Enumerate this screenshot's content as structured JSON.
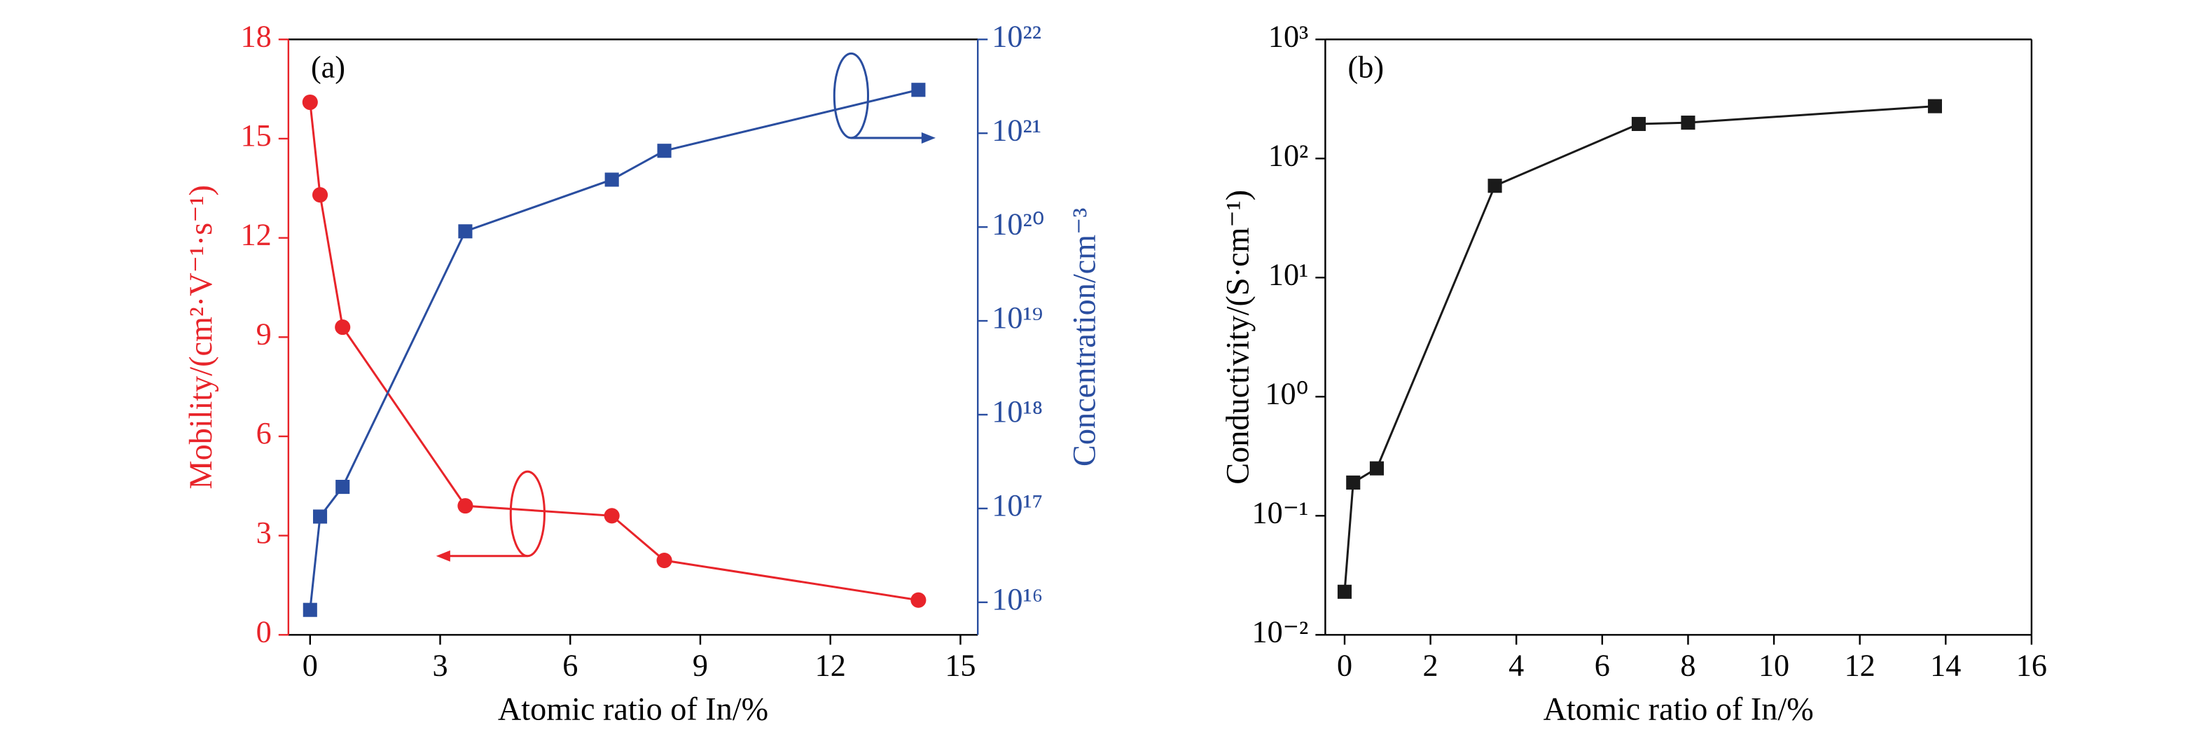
{
  "chart_data": [
    {
      "type": "line",
      "annotation": "(a)",
      "xlabel": "Atomic ratio of In/%",
      "ylabel": "Mobility/(cm²·V⁻¹·s⁻¹)",
      "y2label": "Concentration/cm⁻³",
      "yaxis_color": "#e8242a",
      "y2axis_color": "#2a4ea0",
      "y2log": true,
      "x": [
        0,
        0.23,
        0.75,
        3.58,
        6.96,
        8.17,
        14.03
      ],
      "xlim": [
        -0.5,
        15.4
      ],
      "xticks": [
        0,
        3,
        6,
        9,
        12,
        15
      ],
      "ylim": [
        0,
        18
      ],
      "yticks": [
        0,
        3,
        6,
        9,
        12,
        15,
        18
      ],
      "y2lim": [
        4500000000000000.0,
        1e+22
      ],
      "y2ticks": [
        {
          "value": 1e+16,
          "label": "10¹⁶"
        },
        {
          "value": 1e+17,
          "label": "10¹⁷"
        },
        {
          "value": 1e+18,
          "label": "10¹⁸"
        },
        {
          "value": 1e+19,
          "label": "10¹⁹"
        },
        {
          "value": 1e+20,
          "label": "10²⁰"
        },
        {
          "value": 1e+21,
          "label": "10²¹"
        },
        {
          "value": 1e+22,
          "label": "10²²"
        }
      ],
      "series": [
        {
          "name": "Mobility",
          "color": "#e8242a",
          "marker": "circle",
          "values": [
            16.1,
            13.3,
            9.3,
            3.9,
            3.6,
            2.25,
            1.05
          ]
        },
        {
          "name": "Concentration",
          "color": "#2a4ea0",
          "marker": "square",
          "axis": "y2",
          "values": [
            8300000000000000.0,
            8.2e+16,
            1.7e+17,
            9e+19,
            3.2e+20,
            6.5e+20,
            2.9e+21
          ]
        }
      ]
    },
    {
      "type": "line",
      "annotation": "(b)",
      "xlabel": "Atomic ratio of In/%",
      "ylabel": "Conductivity/(S·cm⁻¹)",
      "ylog": true,
      "x": [
        0,
        0.2,
        0.75,
        3.5,
        6.85,
        8.0,
        13.75
      ],
      "xlim": [
        -0.45,
        16
      ],
      "xticks": [
        0,
        2,
        4,
        6,
        8,
        10,
        12,
        14,
        16
      ],
      "ylim": [
        0.01,
        1000
      ],
      "yticks": [
        {
          "value": 0.01,
          "label": "10⁻²"
        },
        {
          "value": 0.1,
          "label": "10⁻¹"
        },
        {
          "value": 1,
          "label": "10⁰"
        },
        {
          "value": 10,
          "label": "10¹"
        },
        {
          "value": 100,
          "label": "10²"
        },
        {
          "value": 1000,
          "label": "10³"
        }
      ],
      "series": [
        {
          "name": "Conductivity",
          "color": "#1a1a1a",
          "marker": "square",
          "values": [
            0.023,
            0.19,
            0.25,
            59,
            195,
            200,
            275
          ]
        }
      ]
    }
  ]
}
